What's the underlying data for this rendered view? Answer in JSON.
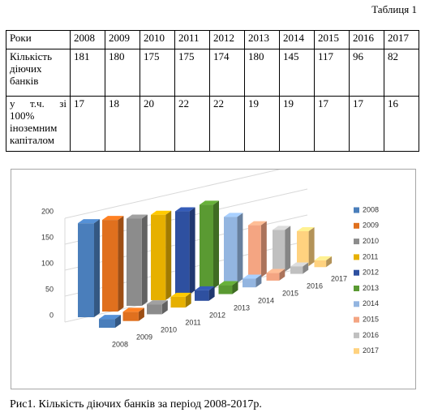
{
  "table_label": "Таблиця 1",
  "table": {
    "rows": [
      [
        "Роки",
        "2008",
        "2009",
        "2010",
        "2011",
        "2012",
        "2013",
        "2014",
        "2015",
        "2016",
        "2017"
      ],
      [
        "Кількість діючих банків",
        "181",
        "180",
        "175",
        "175",
        "174",
        "180",
        "145",
        "117",
        "96",
        "82"
      ],
      [
        "у т.ч. зі 100% іноземним капіталом",
        "17",
        "18",
        "20",
        "22",
        "22",
        "19",
        "19",
        "17",
        "17",
        "16"
      ]
    ]
  },
  "chart_data": {
    "type": "bar3d",
    "categories": [
      null,
      null
    ],
    "series": [
      {
        "name": "2008",
        "color": "#4a7ebb",
        "values": [
          181,
          17
        ]
      },
      {
        "name": "2009",
        "color": "#e0701e",
        "values": [
          180,
          18
        ]
      },
      {
        "name": "2010",
        "color": "#8c8c8c",
        "values": [
          175,
          20
        ]
      },
      {
        "name": "2011",
        "color": "#e6b000",
        "values": [
          175,
          22
        ]
      },
      {
        "name": "2012",
        "color": "#2e50a0",
        "values": [
          174,
          22
        ]
      },
      {
        "name": "2013",
        "color": "#5a9a32",
        "values": [
          180,
          19
        ]
      },
      {
        "name": "2014",
        "color": "#93b5e0",
        "values": [
          145,
          19
        ]
      },
      {
        "name": "2015",
        "color": "#f4a582",
        "values": [
          117,
          17
        ]
      },
      {
        "name": "2016",
        "color": "#c0c0c0",
        "values": [
          96,
          17
        ]
      },
      {
        "name": "2017",
        "color": "#ffd27f",
        "values": [
          82,
          16
        ]
      }
    ],
    "ylim": [
      0,
      200
    ],
    "yticks": [
      0,
      50,
      100,
      150,
      200
    ],
    "grid": true,
    "legend": "right"
  },
  "caption": "Рис1. Кількість діючих банків за період 2008-2017р."
}
